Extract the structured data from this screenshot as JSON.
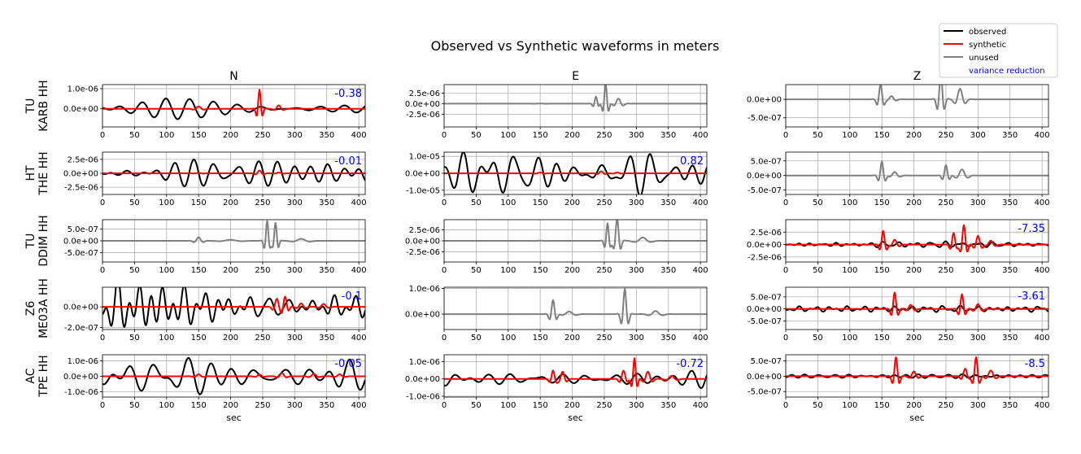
{
  "chart_data": {
    "type": "line",
    "title": "Observed vs Synthetic waveforms in meters",
    "xlabel": "sec",
    "xlim": [
      0,
      410
    ],
    "xticks": [
      0,
      50,
      100,
      150,
      200,
      250,
      300,
      350,
      400
    ],
    "grid": true,
    "columns": [
      "N",
      "E",
      "Z"
    ],
    "stations": [
      "TU\nKARB HH",
      "HT\nTHE HH",
      "TU\nDDIM HH",
      "Z6\nME03A HH",
      "AC\nTPE HH"
    ],
    "legend": {
      "position": "top-right",
      "entries": [
        {
          "label": "observed",
          "color": "#000000"
        },
        {
          "label": "synthetic",
          "color": "#ff0000"
        },
        {
          "label": "unused",
          "color": "#808080"
        },
        {
          "label": "variance reduction",
          "color": "#0000ff",
          "text_only": true
        }
      ]
    },
    "colors": {
      "observed": "#000000",
      "synthetic": "#ff0000",
      "unused": "#808080",
      "vr": "#0000ff",
      "grid": "#b0b0b0"
    },
    "panels": [
      {
        "station": "TU\nKARB HH",
        "component": "N",
        "used": true,
        "variance_reduction": "-0.38",
        "ylim": [
          -9e-07,
          1.2e-06
        ],
        "yticks": [
          {
            "v": 1e-06,
            "label": "1.0e-06"
          },
          {
            "v": 0,
            "label": "0.0e+00"
          }
        ],
        "observed": {
          "amp": 5.5e-07,
          "env": [
            [
              0,
              0.8
            ],
            [
              100,
              1.0
            ],
            [
              200,
              0.5
            ],
            [
              300,
              0.3
            ],
            [
              410,
              0.3
            ]
          ],
          "period": 32,
          "seed": 1
        },
        "synthetic": {
          "amp": 9.5e-07,
          "packets": [
            [
              150,
              0.12,
              9
            ],
            [
              245,
              1.0,
              5
            ],
            [
              275,
              0.18,
              8
            ]
          ]
        }
      },
      {
        "station": "TU\nKARB HH",
        "component": "E",
        "used": false,
        "variance_reduction": "",
        "ylim": [
          -5.5e-06,
          4.5e-06
        ],
        "yticks": [
          {
            "v": 2.5e-06,
            "label": "2.5e-06"
          },
          {
            "v": 0,
            "label": "0.0e+00"
          },
          {
            "v": -2.5e-06,
            "label": "-2.5e-06"
          }
        ],
        "observed": {
          "amp": 4.8e-06,
          "packets": [
            [
              150,
              0.01,
              10
            ],
            [
              237,
              0.35,
              5
            ],
            [
              252,
              1.0,
              5
            ],
            [
              272,
              0.25,
              8
            ]
          ]
        },
        "synthetic": null
      },
      {
        "station": "TU\nKARB HH",
        "component": "Z",
        "used": false,
        "variance_reduction": "",
        "ylim": [
          -7.5e-07,
          4e-07
        ],
        "yticks": [
          {
            "v": 0,
            "label": "0.0e+00"
          },
          {
            "v": -5e-07,
            "label": "-5.0e-07"
          }
        ],
        "observed": {
          "amp": 7.3e-07,
          "packets": [
            [
              148,
              0.55,
              6
            ],
            [
              165,
              0.12,
              8
            ],
            [
              242,
              1.0,
              6
            ],
            [
              272,
              0.4,
              9
            ]
          ]
        },
        "synthetic": null
      },
      {
        "station": "HT\nTHE HH",
        "component": "N",
        "used": true,
        "variance_reduction": "-0.01",
        "ylim": [
          -3.8e-06,
          3.8e-06
        ],
        "yticks": [
          {
            "v": 2.5e-06,
            "label": "2.5e-06"
          },
          {
            "v": 0,
            "label": "0.0e+00"
          },
          {
            "v": -2.5e-06,
            "label": "-2.5e-06"
          }
        ],
        "observed": {
          "amp": 2.3e-06,
          "env": [
            [
              0,
              0.6
            ],
            [
              120,
              0.9
            ],
            [
              250,
              0.8
            ],
            [
              350,
              1.0
            ],
            [
              410,
              0.9
            ]
          ],
          "period": 28,
          "seed": 2
        },
        "synthetic": {
          "amp": 5e-07,
          "packets": [
            [
              150,
              0.15,
              8
            ],
            [
              245,
              1.0,
              7
            ],
            [
              275,
              0.3,
              8
            ]
          ]
        }
      },
      {
        "station": "HT\nTHE HH",
        "component": "E",
        "used": true,
        "variance_reduction": "0.82",
        "ylim": [
          -1.25e-05,
          1.25e-05
        ],
        "yticks": [
          {
            "v": 1e-05,
            "label": "1.0e-05"
          },
          {
            "v": 0,
            "label": "0.0e+00"
          },
          {
            "v": -1e-05,
            "label": "-1.0e-05"
          }
        ],
        "observed": {
          "amp": 1.1e-05,
          "env": [
            [
              0,
              1.0
            ],
            [
              80,
              0.9
            ],
            [
              200,
              0.5
            ],
            [
              300,
              0.7
            ],
            [
              410,
              0.8
            ]
          ],
          "period": 30,
          "seed": 3
        },
        "synthetic": {
          "amp": 1.2e-06,
          "packets": [
            [
              150,
              0.4,
              8
            ],
            [
              245,
              1.0,
              7
            ],
            [
              270,
              0.4,
              8
            ]
          ]
        }
      },
      {
        "station": "HT\nTHE HH",
        "component": "Z",
        "used": false,
        "variance_reduction": "",
        "ylim": [
          -6.5e-07,
          8e-07
        ],
        "yticks": [
          {
            "v": 5e-07,
            "label": "5.0e-07"
          },
          {
            "v": 0,
            "label": "0.0e+00"
          },
          {
            "v": -5e-07,
            "label": "-5.0e-07"
          }
        ],
        "observed": {
          "amp": 6e-07,
          "packets": [
            [
              150,
              0.8,
              6
            ],
            [
              170,
              0.2,
              9
            ],
            [
              250,
              0.6,
              6
            ],
            [
              275,
              0.35,
              10
            ]
          ]
        },
        "synthetic": null
      },
      {
        "station": "TU\nDDIM HH",
        "component": "N",
        "used": false,
        "variance_reduction": "",
        "ylim": [
          -9e-07,
          9e-07
        ],
        "yticks": [
          {
            "v": 5e-07,
            "label": "5.0e-07"
          },
          {
            "v": 0,
            "label": "0.0e+00"
          },
          {
            "v": -5e-07,
            "label": "-5.0e-07"
          }
        ],
        "observed": {
          "amp": 8.5e-07,
          "packets": [
            [
              150,
              0.18,
              8
            ],
            [
              200,
              0.05,
              20
            ],
            [
              257,
              1.0,
              5
            ],
            [
              270,
              0.9,
              5
            ],
            [
              310,
              0.1,
              15
            ]
          ]
        },
        "synthetic": null
      },
      {
        "station": "TU\nDDIM HH",
        "component": "E",
        "used": false,
        "variance_reduction": "",
        "ylim": [
          -4.8e-06,
          4.8e-06
        ],
        "yticks": [
          {
            "v": 2.5e-06,
            "label": "2.5e-06"
          },
          {
            "v": 0,
            "label": "0.0e+00"
          },
          {
            "v": -2.5e-06,
            "label": "-2.5e-06"
          }
        ],
        "observed": {
          "amp": 5e-06,
          "packets": [
            [
              150,
              0.01,
              10
            ],
            [
              255,
              0.8,
              5
            ],
            [
              270,
              1.0,
              6
            ],
            [
              310,
              0.15,
              14
            ]
          ]
        },
        "synthetic": null
      },
      {
        "station": "TU\nDDIM HH",
        "component": "Z",
        "used": true,
        "variance_reduction": "-7.35",
        "ylim": [
          -3.5e-06,
          5e-06
        ],
        "yticks": [
          {
            "v": 2.5e-06,
            "label": "2.5e-06"
          },
          {
            "v": 0,
            "label": "0.0e+00"
          },
          {
            "v": -2.5e-06,
            "label": "-2.5e-06"
          }
        ],
        "observed": {
          "amp": 4e-07,
          "env": [
            [
              0,
              0.6
            ],
            [
              150,
              1.0
            ],
            [
              300,
              0.9
            ],
            [
              410,
              0.7
            ]
          ],
          "period": 22,
          "seed": 4
        },
        "synthetic": {
          "amp": 3.9e-06,
          "packets": [
            [
              152,
              0.7,
              6
            ],
            [
              170,
              0.25,
              8
            ],
            [
              262,
              0.6,
              6
            ],
            [
              278,
              1.0,
              6
            ],
            [
              300,
              0.45,
              7
            ],
            [
              320,
              0.2,
              9
            ]
          ]
        }
      },
      {
        "station": "Z6\nME03A HH",
        "component": "N",
        "used": true,
        "variance_reduction": "-0.1",
        "ylim": [
          -2.2e-07,
          1.9e-07
        ],
        "yticks": [
          {
            "v": 0,
            "label": "0.0e+00"
          },
          {
            "v": -2e-07,
            "label": "-2.0e-07"
          }
        ],
        "observed": {
          "amp": 1.8e-07,
          "env": [
            [
              0,
              1.0
            ],
            [
              60,
              0.9
            ],
            [
              150,
              0.65
            ],
            [
              300,
              0.5
            ],
            [
              410,
              0.4
            ]
          ],
          "period": 24,
          "seed": 5
        },
        "synthetic": {
          "amp": 1.1e-07,
          "packets": [
            [
              272,
              0.7,
              7
            ],
            [
              285,
              0.9,
              6
            ],
            [
              310,
              0.3,
              8
            ],
            [
              345,
              0.25,
              9
            ]
          ]
        }
      },
      {
        "station": "Z6\nME03A HH",
        "component": "E",
        "used": false,
        "variance_reduction": "",
        "ylim": [
          -6e-07,
          1.05e-06
        ],
        "yticks": [
          {
            "v": 1e-06,
            "label": "1.0e-06"
          },
          {
            "v": 0,
            "label": "0.0e+00"
          }
        ],
        "observed": {
          "amp": 1e-06,
          "packets": [
            [
              170,
              0.55,
              6
            ],
            [
              195,
              0.1,
              12
            ],
            [
              282,
              1.0,
              6
            ],
            [
              330,
              0.12,
              12
            ]
          ]
        },
        "synthetic": null
      },
      {
        "station": "Z6\nME03A HH",
        "component": "Z",
        "used": true,
        "variance_reduction": "-3.61",
        "ylim": [
          -8.5e-07,
          9e-07
        ],
        "yticks": [
          {
            "v": 5e-07,
            "label": "5.0e-07"
          },
          {
            "v": 0,
            "label": "0.0e+00"
          },
          {
            "v": -5e-07,
            "label": "-5.0e-07"
          }
        ],
        "observed": {
          "amp": 1.2e-07,
          "env": [
            [
              0,
              0.8
            ],
            [
              170,
              1.0
            ],
            [
              300,
              0.9
            ],
            [
              410,
              0.8
            ]
          ],
          "period": 24,
          "seed": 6
        },
        "synthetic": {
          "amp": 6.8e-07,
          "packets": [
            [
              170,
              1.0,
              6
            ],
            [
              195,
              0.25,
              8
            ],
            [
              275,
              0.9,
              6
            ],
            [
              300,
              0.3,
              8
            ]
          ]
        }
      },
      {
        "station": "AC\nTPE HH",
        "component": "N",
        "used": true,
        "variance_reduction": "-0.05",
        "ylim": [
          -1.35e-06,
          1.4e-06
        ],
        "yticks": [
          {
            "v": 1e-06,
            "label": "1.0e-06"
          },
          {
            "v": 0,
            "label": "0.0e+00"
          },
          {
            "v": -1e-06,
            "label": "-1.0e-06"
          }
        ],
        "observed": {
          "amp": 1e-06,
          "env": [
            [
              0,
              0.9
            ],
            [
              120,
              1.0
            ],
            [
              250,
              0.35
            ],
            [
              340,
              0.4
            ],
            [
              390,
              1.2
            ],
            [
              410,
              1.2
            ]
          ],
          "period": 36,
          "seed": 7
        },
        "synthetic": {
          "amp": 2.6e-07,
          "packets": [
            [
              150,
              0.5,
              8
            ],
            [
              245,
              0.4,
              8
            ],
            [
              280,
              0.8,
              8
            ],
            [
              330,
              0.6,
              9
            ],
            [
              370,
              0.5,
              9
            ]
          ]
        }
      },
      {
        "station": "AC\nTPE HH",
        "component": "E",
        "used": true,
        "variance_reduction": "-0.72",
        "ylim": [
          -1.05e-06,
          1.4e-06
        ],
        "yticks": [
          {
            "v": 1e-06,
            "label": "1.0e-06"
          },
          {
            "v": 0,
            "label": "0.0e+00"
          },
          {
            "v": -1e-06,
            "label": "-1.0e-06"
          }
        ],
        "observed": {
          "amp": 4.5e-07,
          "env": [
            [
              0,
              1.4
            ],
            [
              70,
              0.6
            ],
            [
              200,
              0.4
            ],
            [
              330,
              0.6
            ],
            [
              410,
              1.6
            ]
          ],
          "period": 30,
          "seed": 8
        },
        "synthetic": {
          "amp": 1.2e-06,
          "packets": [
            [
              170,
              0.4,
              6
            ],
            [
              185,
              0.35,
              7
            ],
            [
              280,
              0.4,
              7
            ],
            [
              297,
              1.0,
              5
            ],
            [
              318,
              0.35,
              8
            ],
            [
              355,
              0.15,
              10
            ]
          ]
        }
      },
      {
        "station": "AC\nTPE HH",
        "component": "Z",
        "used": true,
        "variance_reduction": "-8.5",
        "ylim": [
          -6.8e-07,
          7e-07
        ],
        "yticks": [
          {
            "v": 5e-07,
            "label": "5.0e-07"
          },
          {
            "v": 0,
            "label": "0.0e+00"
          },
          {
            "v": -5e-07,
            "label": "-5.0e-07"
          }
        ],
        "observed": {
          "amp": 5e-08,
          "env": [
            [
              0,
              0.8
            ],
            [
              170,
              1.0
            ],
            [
              300,
              1.0
            ],
            [
              410,
              0.8
            ]
          ],
          "period": 22,
          "seed": 9
        },
        "synthetic": {
          "amp": 6.2e-07,
          "packets": [
            [
              172,
              1.0,
              6
            ],
            [
              200,
              0.25,
              8
            ],
            [
              280,
              0.4,
              7
            ],
            [
              297,
              1.0,
              6
            ],
            [
              320,
              0.3,
              9
            ]
          ]
        }
      }
    ]
  }
}
